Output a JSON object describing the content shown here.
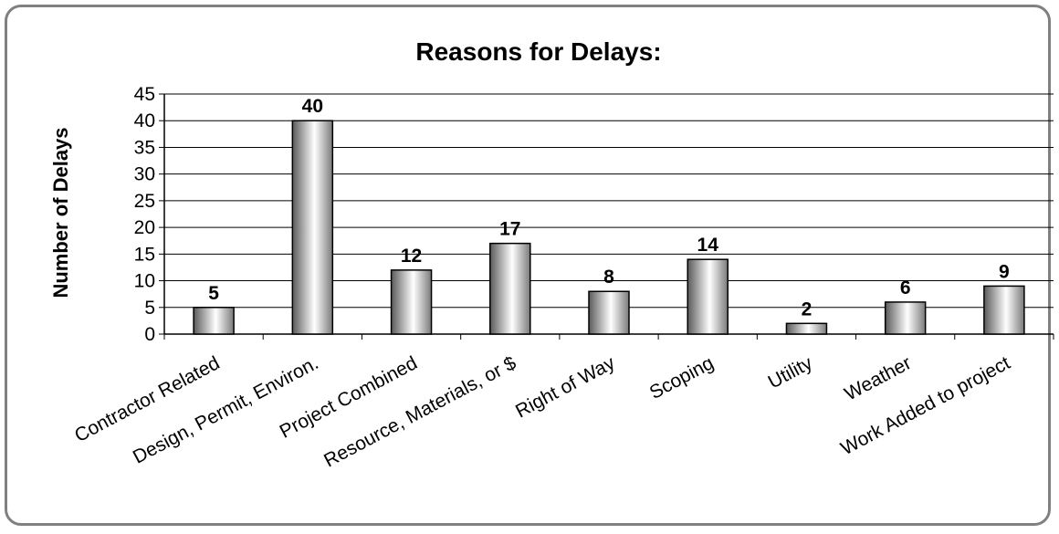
{
  "chart_data": {
    "type": "bar",
    "title": "Reasons for Delays:",
    "xlabel": "",
    "ylabel": "Number of Delays",
    "categories": [
      "Contractor Related",
      "Design, Permit, Environ.",
      "Project Combined",
      "Resource, Materials, or $",
      "Right of Way",
      "Scoping",
      "Utility",
      "Weather",
      "Work Added to project"
    ],
    "values": [
      5,
      40,
      12,
      17,
      8,
      14,
      2,
      6,
      9
    ],
    "ylim": [
      0,
      45
    ],
    "yticks": [
      0,
      5,
      10,
      15,
      20,
      25,
      30,
      35,
      40,
      45
    ],
    "grid": true,
    "legend": "none",
    "colors": {
      "bar_dark": "#5a5a5a",
      "bar_light": "#ffffff",
      "gridline": "#000000",
      "frame": "#808080"
    }
  }
}
